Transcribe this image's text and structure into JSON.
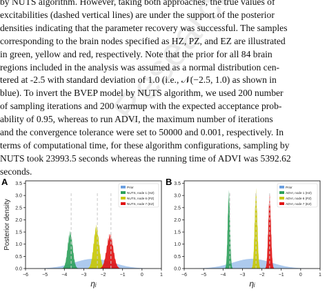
{
  "paragraph_lines": [
    "by NUTS algorithm. However, taking both approaches, the true values of",
    "excitabilities (dashed vertical lines) are under the support of the posterior",
    "densities indicating that the parameter recovery was successful. The samples",
    "corresponding to the brain nodes specified as HZ, PZ, and EZ are illustrated",
    "in green, yellow and red, respectively. Note that the prior for all 84 brain",
    "regions included in the analysis was assumed as a normal distribution cen-",
    "tered at -2.5 with standard deviation of 1.0 (i.e., 𝒩(−2.5, 1.0) as shown in",
    "blue). To invert the BVEP model by NUTS algorithm, we used 200 number",
    "of sampling iterations and 200 warmup with the expected acceptance prob-",
    "ability of 0.95, whereas to run ADVI, the maximum number of iterations",
    "and the convergence tolerance were set to 50000 and 0.001, respectively. In",
    "terms of computational time, for these algorithm configurations, sampling by",
    "NUTS took 23993.5 seconds whereas the running time of ADVI was 5392.62",
    "seconds."
  ],
  "watermark": "ResearchGate",
  "colors": {
    "prior": "#6a9fe0",
    "hz": "#2ca05a",
    "pz": "#c8c800",
    "ez": "#e01010",
    "true_line": "#cccccc"
  },
  "chart_data": [
    {
      "panel_label": "A",
      "type": "area",
      "ylabel": "Posterior density",
      "xlabel": "ηᵢ",
      "xlim": [
        -6,
        1
      ],
      "ylim": [
        0,
        3.6
      ],
      "x_ticks": [
        "−6",
        "−5",
        "−4",
        "−3",
        "−2",
        "−1",
        "0",
        "1"
      ],
      "y_ticks": [
        "0.0",
        "0.5",
        "1.0",
        "1.5",
        "2.0",
        "2.5",
        "3.0",
        "3.5"
      ],
      "legend_position": "top-right",
      "series": [
        {
          "name": "Prior",
          "kind": "prior",
          "mean": -2.5,
          "sd": 1.0,
          "peak": 0.4
        },
        {
          "name": "NUTS, node 1 (HZ)",
          "kind": "hz",
          "mean": -3.7,
          "sd": 0.13,
          "peak": 1.55
        },
        {
          "name": "NUTS, node 6 (PZ)",
          "kind": "pz",
          "mean": -2.35,
          "sd": 0.14,
          "peak": 1.8
        },
        {
          "name": "NUTS, node 7 (EZ)",
          "kind": "ez",
          "mean": -1.65,
          "sd": 0.17,
          "peak": 1.45
        }
      ],
      "true_values": [
        -3.65,
        -2.3,
        -1.6
      ]
    },
    {
      "panel_label": "B",
      "type": "area",
      "ylabel": "",
      "xlabel": "ηᵢ",
      "xlim": [
        -6,
        1
      ],
      "ylim": [
        0,
        3.6
      ],
      "x_ticks": [
        "−6",
        "−5",
        "−4",
        "−3",
        "−2",
        "−1",
        "0",
        "1"
      ],
      "y_ticks": [
        "0.0",
        "0.5",
        "1.0",
        "1.5",
        "2.0",
        "2.5",
        "3.0",
        "3.5"
      ],
      "legend_position": "top-right",
      "series": [
        {
          "name": "Prior",
          "kind": "prior",
          "mean": -2.5,
          "sd": 1.0,
          "peak": 0.4
        },
        {
          "name": "ADVI, node 1 (HZ)",
          "kind": "hz",
          "mean": -3.7,
          "sd": 0.06,
          "peak": 3.25
        },
        {
          "name": "ADVI, node 6 (PZ)",
          "kind": "pz",
          "mean": -2.3,
          "sd": 0.07,
          "peak": 3.3
        },
        {
          "name": "ADVI, node 7 (EZ)",
          "kind": "ez",
          "mean": -1.6,
          "sd": 0.07,
          "peak": 3.1
        }
      ],
      "true_values": [
        -3.65,
        -2.3,
        -1.6
      ]
    }
  ]
}
